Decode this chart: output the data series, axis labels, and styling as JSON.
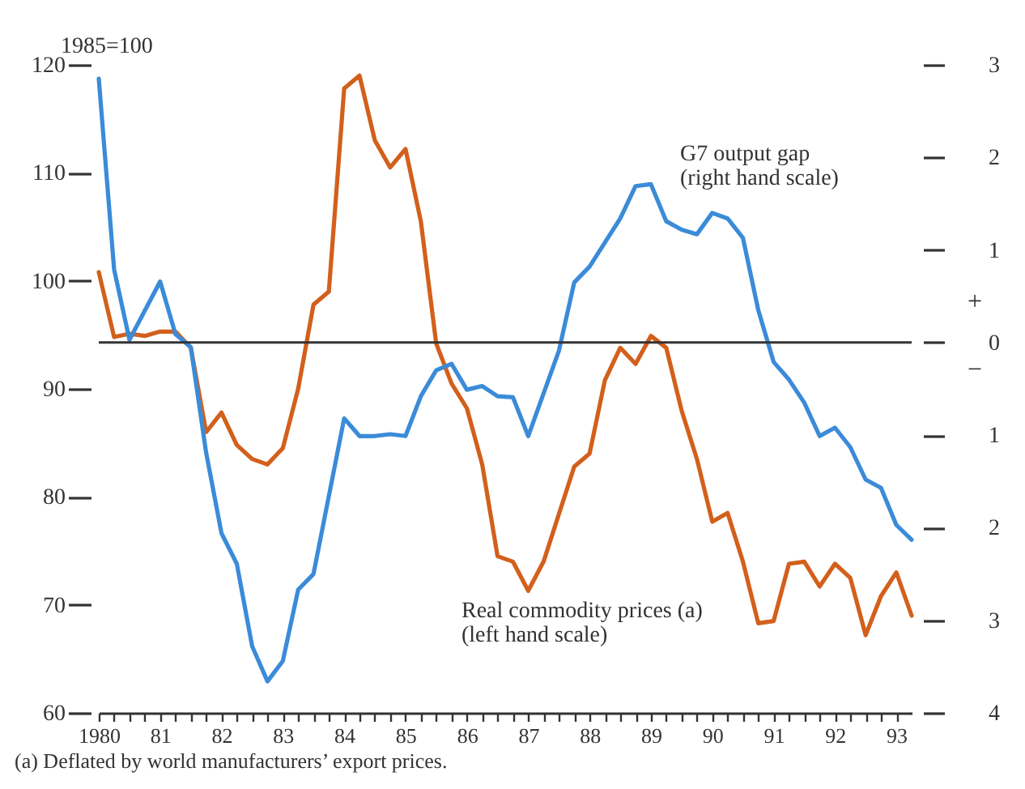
{
  "chart_data": {
    "type": "line",
    "ylabel": "1985=100",
    "xlim": [
      1980,
      1993.25
    ],
    "ylim": [
      60,
      120
    ],
    "yticks": [
      60,
      70,
      80,
      90,
      100,
      110,
      120
    ],
    "y2lim": [
      -4,
      3
    ],
    "y2ticks": [
      {
        "value": -4,
        "label": "4"
      },
      {
        "value": -3,
        "label": "3"
      },
      {
        "value": -2,
        "label": "2"
      },
      {
        "value": -1,
        "label": "1"
      },
      {
        "value": 0,
        "label": "0"
      },
      {
        "value": 1,
        "label": "1"
      },
      {
        "value": 2,
        "label": "2"
      },
      {
        "value": 3,
        "label": "3"
      }
    ],
    "xticks": [
      {
        "value": 1980,
        "label": "1980"
      },
      {
        "value": 1980.25,
        "label": null
      },
      {
        "value": 1980.5,
        "label": null
      },
      {
        "value": 1980.75,
        "label": null
      },
      {
        "value": 1981,
        "label": "81"
      },
      {
        "value": 1981.25,
        "label": null
      },
      {
        "value": 1981.5,
        "label": null
      },
      {
        "value": 1981.75,
        "label": null
      },
      {
        "value": 1982,
        "label": "82"
      },
      {
        "value": 1982.25,
        "label": null
      },
      {
        "value": 1982.5,
        "label": null
      },
      {
        "value": 1982.75,
        "label": null
      },
      {
        "value": 1983,
        "label": "83"
      },
      {
        "value": 1983.25,
        "label": null
      },
      {
        "value": 1983.5,
        "label": null
      },
      {
        "value": 1983.75,
        "label": null
      },
      {
        "value": 1984,
        "label": "84"
      },
      {
        "value": 1984.25,
        "label": null
      },
      {
        "value": 1984.5,
        "label": null
      },
      {
        "value": 1984.75,
        "label": null
      },
      {
        "value": 1985,
        "label": "85"
      },
      {
        "value": 1985.25,
        "label": null
      },
      {
        "value": 1985.5,
        "label": null
      },
      {
        "value": 1985.75,
        "label": null
      },
      {
        "value": 1986,
        "label": "86"
      },
      {
        "value": 1986.25,
        "label": null
      },
      {
        "value": 1986.5,
        "label": null
      },
      {
        "value": 1986.75,
        "label": null
      },
      {
        "value": 1987,
        "label": "87"
      },
      {
        "value": 1987.25,
        "label": null
      },
      {
        "value": 1987.5,
        "label": null
      },
      {
        "value": 1987.75,
        "label": null
      },
      {
        "value": 1988,
        "label": "88"
      },
      {
        "value": 1988.25,
        "label": null
      },
      {
        "value": 1988.5,
        "label": null
      },
      {
        "value": 1988.75,
        "label": null
      },
      {
        "value": 1989,
        "label": "89"
      },
      {
        "value": 1989.25,
        "label": null
      },
      {
        "value": 1989.5,
        "label": null
      },
      {
        "value": 1989.75,
        "label": null
      },
      {
        "value": 1990,
        "label": "90"
      },
      {
        "value": 1990.25,
        "label": null
      },
      {
        "value": 1990.5,
        "label": null
      },
      {
        "value": 1990.75,
        "label": null
      },
      {
        "value": 1991,
        "label": "91"
      },
      {
        "value": 1991.25,
        "label": null
      },
      {
        "value": 1991.5,
        "label": null
      },
      {
        "value": 1991.75,
        "label": null
      },
      {
        "value": 1992,
        "label": "92"
      },
      {
        "value": 1992.25,
        "label": null
      },
      {
        "value": 1992.5,
        "label": null
      },
      {
        "value": 1992.75,
        "label": null
      },
      {
        "value": 1993,
        "label": "93"
      }
    ],
    "series": [
      {
        "name": "Real commodity prices (a) (left hand scale)",
        "color": "#d2601c",
        "x": [
          1980.0,
          1980.25,
          1980.5,
          1980.75,
          1981.0,
          1981.25,
          1981.5,
          1981.75,
          1982.0,
          1982.25,
          1982.5,
          1982.75,
          1983.0,
          1983.25,
          1983.5,
          1983.75,
          1984.0,
          1984.25,
          1984.5,
          1984.75,
          1985.0,
          1985.25,
          1985.5,
          1985.75,
          1986.0,
          1986.25,
          1986.5,
          1986.75,
          1987.0,
          1987.25,
          1987.75,
          1988.0,
          1988.25,
          1988.5,
          1988.75,
          1989.0,
          1989.25,
          1989.5,
          1989.75,
          1990.0,
          1990.25,
          1990.5,
          1990.75,
          1991.0,
          1991.25,
          1991.5,
          1991.75,
          1992.0,
          1992.25,
          1992.5,
          1992.75,
          1993.0,
          1993.25
        ],
        "values": [
          100.8,
          94.8,
          95.1,
          94.9,
          95.3,
          95.3,
          93.8,
          86.0,
          87.8,
          84.8,
          83.5,
          83.0,
          84.5,
          90.0,
          97.8,
          99.0,
          117.8,
          119.0,
          113.0,
          110.5,
          112.2,
          105.5,
          94.2,
          90.5,
          88.2,
          83.0,
          74.5,
          74.0,
          71.3,
          74.0,
          82.8,
          84.0,
          90.8,
          93.8,
          92.3,
          94.9,
          93.8,
          88.0,
          83.5,
          77.7,
          78.5,
          74.0,
          68.3,
          68.5,
          73.8,
          74.0,
          71.7,
          73.8,
          72.5,
          67.2,
          70.8,
          73.0,
          69.0
        ]
      },
      {
        "name": "G7 output gap (right hand scale)",
        "color": "#3b8bd8",
        "axis": "y2",
        "x": [
          1980.0,
          1980.25,
          1980.5,
          1981.0,
          1981.25,
          1981.5,
          1981.75,
          1982.0,
          1982.25,
          1982.5,
          1982.75,
          1983.0,
          1983.25,
          1983.5,
          1984.0,
          1984.25,
          1984.5,
          1984.75,
          1985.0,
          1985.25,
          1985.5,
          1985.75,
          1986.0,
          1986.25,
          1986.5,
          1986.75,
          1987.0,
          1987.5,
          1987.75,
          1988.0,
          1988.5,
          1988.75,
          1989.0,
          1989.25,
          1989.5,
          1989.75,
          1990.0,
          1990.25,
          1990.5,
          1990.75,
          1991.0,
          1991.25,
          1991.5,
          1991.75,
          1992.0,
          1992.25,
          1992.5,
          1992.75,
          1993.0,
          1993.25
        ],
        "values": [
          2.85,
          0.79,
          0.03,
          0.66,
          0.09,
          -0.05,
          -1.19,
          -2.06,
          -2.39,
          -3.28,
          -3.66,
          -3.44,
          -2.67,
          -2.5,
          -0.82,
          -1.01,
          -1.01,
          -0.99,
          -1.01,
          -0.58,
          -0.3,
          -0.23,
          -0.51,
          -0.47,
          -0.58,
          -0.59,
          -1.01,
          -0.09,
          0.65,
          0.82,
          1.34,
          1.69,
          1.71,
          1.31,
          1.22,
          1.17,
          1.4,
          1.34,
          1.13,
          0.35,
          -0.21,
          -0.4,
          -0.65,
          -1.01,
          -0.92,
          -1.13,
          -1.48,
          -1.57,
          -1.97,
          -2.13
        ]
      }
    ],
    "ref_lines": [
      {
        "axis": "y2",
        "value": 0,
        "color": "#333333"
      }
    ],
    "annotations": [
      "+",
      "−",
      "(a)   Deflated by world manufacturers’ export prices."
    ],
    "grid": false,
    "marker": "none",
    "line_style": "solid"
  }
}
